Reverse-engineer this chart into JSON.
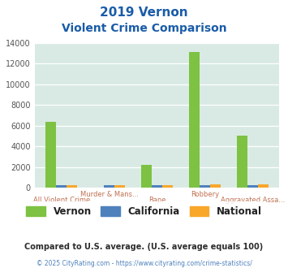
{
  "title_line1": "2019 Vernon",
  "title_line2": "Violent Crime Comparison",
  "categories": [
    "All Violent Crime",
    "Murder & Mans...",
    "Rape",
    "Robbery",
    "Aggravated Assa..."
  ],
  "vernon_values": [
    6400,
    0,
    2200,
    13100,
    5000
  ],
  "california_values": [
    250,
    200,
    200,
    200,
    250
  ],
  "national_values": [
    250,
    200,
    250,
    300,
    300
  ],
  "vernon_color": "#7dc242",
  "california_color": "#4f81bd",
  "national_color": "#f8a72a",
  "bg_color": "#d9eae4",
  "ylim": [
    0,
    14000
  ],
  "yticks": [
    0,
    2000,
    4000,
    6000,
    8000,
    10000,
    12000,
    14000
  ],
  "legend_labels": [
    "Vernon",
    "California",
    "National"
  ],
  "footer_text1": "Compared to U.S. average. (U.S. average equals 100)",
  "footer_text2": "© 2025 CityRating.com - https://www.cityrating.com/crime-statistics/",
  "title_color": "#1a5ca8",
  "footer1_color": "#2c2c2c",
  "footer2_color": "#4f81bd",
  "tick_label_color": "#c07050",
  "grid_color": "#ffffff",
  "bar_width": 0.22
}
